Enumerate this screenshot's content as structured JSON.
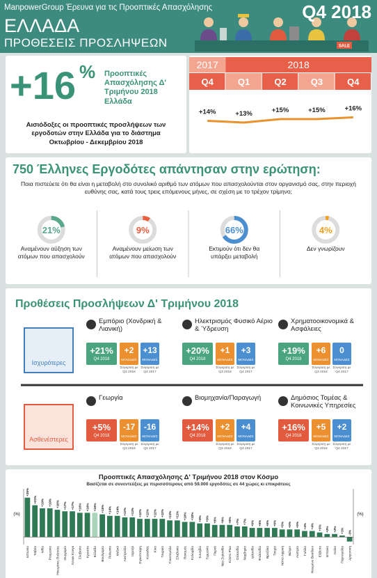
{
  "header": {
    "brand": "ManpowerGroup Έρευνα για τις Προοπτικές Απασχόλησης",
    "period": "Q4 2018",
    "country": "ΕΛΛΑΔΑ",
    "subtitle": "ΠΡΟΘΕΣΕΙΣ ΠΡΟΣΛΗΨΕΩΝ",
    "sale_sign": "SALE"
  },
  "outlook": {
    "value": "+16",
    "unit": "%",
    "label": "Προοπτικές Απασχόλησης Δ' Τριμήνου 2018 Ελλάδα",
    "summary": "Αισιόδοξες οι προοπτικές προσλήψεων των εργοδοτών στην Ελλάδα για το διάστημα Οκτωβρίου - Δεκεμβρίου 2018"
  },
  "survey": {
    "title": "750 Έλληνες Εργοδότες απάντησαν στην ερώτηση:",
    "question": "Ποια πιστεύετε ότι θα είναι η μεταβολή στο συνολικό αριθμό των ατόμων που απασχολούνται στον οργανισμό σας, στην περιοχή ευθύνης σας, κατά τους τρεις επόμενους μήνες, σε σχέση με το τρέχον τρίμηνο;",
    "answers": [
      {
        "value": 21,
        "label": "21%",
        "caption": "Αναμένουν αύξηση των ατόμων που απασχολούν",
        "color": "#5aa88a"
      },
      {
        "value": 9,
        "label": "9%",
        "caption": "Αναμένουν μείωση των ατόμων που απασχολούν",
        "color": "#e8603f"
      },
      {
        "value": 66,
        "label": "66%",
        "caption": "Εκτιμούν ότι δεν θα υπάρξει μεταβολή",
        "color": "#4b8fd1"
      },
      {
        "value": 4,
        "label": "4%",
        "caption": "Δεν γνωρίζουν",
        "color": "#f0a020"
      }
    ]
  },
  "sectors": {
    "title": "Προθέσεις Προσλήψεων Δ' Τριμήνου 2018",
    "quarter": "Q4 2018",
    "units": "ΜΟΝΑΔΕΣ",
    "vs_q3": "Σύγκριση με Q3 2018",
    "vs_q4": "Σύγκριση με Q4 2017",
    "q3_color": "#ec8f2e",
    "q4_color": "#4b8fd1",
    "groups": [
      {
        "label": "Ισχυρότερες",
        "color": "#4aa57e",
        "frame_color": "#3f7fbf",
        "items": [
          {
            "name": "Εμπόριο (Χονδρική & Λιανική)",
            "outlook": "+21%",
            "q3": "+2",
            "q4": "+13"
          },
          {
            "name": "Ηλεκτρισμός Φυσικό Αέριο & Ύδρευση",
            "outlook": "+20%",
            "q3": "+1",
            "q4": "+3"
          },
          {
            "name": "Χρηματοοικονομικά & Ασφάλειες",
            "outlook": "+19%",
            "q3": "+6",
            "q4": "0"
          }
        ]
      },
      {
        "label": "Ασθενέστερες",
        "color": "#e35b3f",
        "frame_color": "#e35b3f",
        "items": [
          {
            "name": "Γεωργία",
            "outlook": "+5%",
            "q3": "-17",
            "q4": "-16"
          },
          {
            "name": "Βιομηχανία/Παραγωγή",
            "outlook": "+14%",
            "q3": "+2",
            "q4": "+4"
          },
          {
            "name": "Δημόσιος Τομέας & Κοινωνικές Υπηρεσίες",
            "outlook": "+16%",
            "q3": "+5",
            "q4": "+2"
          }
        ]
      }
    ]
  },
  "chart_data": [
    {
      "type": "line",
      "years": [
        "2017",
        "2018"
      ],
      "categories": [
        "Q4",
        "Q1",
        "Q2",
        "Q3",
        "Q4"
      ],
      "values": [
        14,
        13,
        15,
        15,
        16
      ],
      "value_labels": [
        "+14%",
        "+13%",
        "+15%",
        "+15%",
        "+16%"
      ],
      "color": "#e8912d"
    },
    {
      "type": "bar",
      "title": "Προοπτικές Απασχόλησης Δ' Τριμήνου 2018 στον Κόσμο",
      "subtitle": "Βασίζεται σε συνεντεύξεις με περισσότερους από 59.000 εργοδότες σε 44 χώρες κι επικράτειες",
      "y_label": "(%)",
      "categories": [
        "Ιαπωνία",
        "Ταϊβάν",
        "Ινδία",
        "Ρουμανία",
        "Ηνωμένες Πολιτείες",
        "Ουγγαρία",
        "Χονγκ Κονγκ",
        "Σλοβενία",
        "Κροατία",
        "Ελλάδα",
        "Βουλγαρία",
        "Πολωνία",
        "Μεξικό",
        "Αυστραλία",
        "Ισραήλ",
        "Σιγκαπούρη",
        "Καναδάς",
        "Κίνα",
        "Τουρκία",
        "Γουατεμάλα",
        "Σλοβακία",
        "Παναμάς",
        "Κολομβία",
        "Σουηδία",
        "Γερμανία",
        "Περού",
        "Νέα Ζηλανδία",
        "Κόστα Ρίκα",
        "Ολλανδία",
        "Νορβηγία",
        "Ιρλανδία",
        "Φινλανδία",
        "Βραζιλία",
        "Τσεχία",
        "Νότια Αφρική",
        "Βέλγιο",
        "Αυστρία",
        "Γαλλία",
        "Ηνωμένο Βασίλειο",
        "Ελβετία",
        "Ισπανία",
        "Ιταλία",
        "Πορτογαλία",
        "Αργεντινή"
      ],
      "values": [
        26,
        21,
        19,
        19,
        18,
        17,
        17,
        16,
        16,
        16,
        15,
        14,
        14,
        13,
        13,
        12,
        12,
        12,
        12,
        11,
        11,
        10,
        10,
        9,
        9,
        8,
        8,
        8,
        7,
        7,
        6,
        6,
        6,
        6,
        5,
        5,
        5,
        4,
        4,
        3,
        2,
        2,
        1,
        -3
      ],
      "value_labels": [
        "+26%",
        "+21%",
        "+19%",
        "+19%",
        "+18%",
        "+17%",
        "+17%",
        "+16%",
        "+16%",
        "+16%",
        "+15%",
        "+14%",
        "+14%",
        "+13%",
        "+13%",
        "+12%",
        "+12%",
        "+12%",
        "+12%",
        "+11%",
        "+11%",
        "+10%",
        "+10%",
        "+9%",
        "+9%",
        "+8%",
        "+8%",
        "+8%",
        "+7%",
        "+7%",
        "+6%",
        "+6%",
        "+6%",
        "+6%",
        "+5%",
        "+5%",
        "+5%",
        "+4%",
        "+4%",
        "+3%",
        "+2%",
        "+2%",
        "+1%",
        "-3%"
      ],
      "colors": [
        "#2f7a55",
        "#2f7a55",
        "#2f7a55",
        "#2f7a55",
        "#2f7a55",
        "#2f7a55",
        "#2f7a55",
        "#2f7a55",
        "#2f7a55",
        "#a9d4b8",
        "#2f7a55",
        "#2f7a55",
        "#2f7a55",
        "#2f7a55",
        "#2f7a55",
        "#2f7a55",
        "#2f7a55",
        "#2f7a55",
        "#2f7a55",
        "#2f7a55",
        "#2f7a55",
        "#2f7a55",
        "#2f7a55",
        "#2f7a55",
        "#2f7a55",
        "#2f7a55",
        "#2f7a55",
        "#2f7a55",
        "#2f7a55",
        "#2f7a55",
        "#2f7a55",
        "#2f7a55",
        "#2f7a55",
        "#2f7a55",
        "#2f7a55",
        "#2f7a55",
        "#2f7a55",
        "#2f7a55",
        "#2f7a55",
        "#2f7a55",
        "#2f7a55",
        "#2f7a55",
        "#2f7a55",
        "#2f7a55"
      ],
      "ylim": [
        -5,
        30
      ]
    }
  ]
}
